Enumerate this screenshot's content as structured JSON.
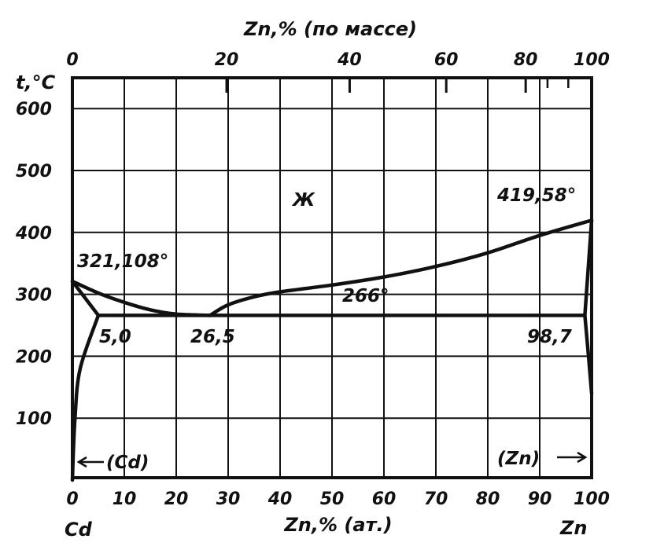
{
  "chart_data": {
    "type": "phase-diagram",
    "title_top": "Zn,% (по массе)",
    "xlabel_bottom": "Zn,% (ат.)",
    "ylabel": "t,°C",
    "x_at_range": [
      0,
      100
    ],
    "y_range": [
      0,
      650
    ],
    "bottom_ticks": [
      "0",
      "10",
      "20",
      "30",
      "40",
      "50",
      "60",
      "70",
      "80",
      "90",
      "100"
    ],
    "top_ticks": [
      {
        "label": "0",
        "at": 0
      },
      {
        "label": "20",
        "at": 29.7
      },
      {
        "label": "40",
        "at": 53.4
      },
      {
        "label": "60",
        "at": 72.0
      },
      {
        "label": "80",
        "at": 87.3
      },
      {
        "label": "100",
        "at": 100
      }
    ],
    "y_ticks": [
      {
        "label": "100",
        "value": 100
      },
      {
        "label": "200",
        "value": 200
      },
      {
        "label": "300",
        "value": 300
      },
      {
        "label": "400",
        "value": 400
      },
      {
        "label": "500",
        "value": 500
      },
      {
        "label": "600",
        "value": 600
      }
    ],
    "component_left": "Cd",
    "component_right": "Zn",
    "phase_liquid": "Ж",
    "phase_cd": "(Cd)",
    "phase_zn": "(Zn)",
    "melting_cd_label": "321,108°",
    "melting_zn_label": "419,58°",
    "eutectic_temp_label": "266°",
    "eutectic_left_label": "5,0",
    "eutectic_mid_label": "26,5",
    "eutectic_right_label": "98,7",
    "liquidus_left": [
      [
        0,
        321.1
      ],
      [
        5,
        302
      ],
      [
        10,
        287
      ],
      [
        15,
        275
      ],
      [
        20,
        268
      ],
      [
        26.5,
        266
      ]
    ],
    "liquidus_right": [
      [
        26.5,
        266
      ],
      [
        30,
        283
      ],
      [
        35,
        296
      ],
      [
        40,
        304
      ],
      [
        50,
        315
      ],
      [
        60,
        328
      ],
      [
        70,
        345
      ],
      [
        80,
        367
      ],
      [
        90,
        395
      ],
      [
        100,
        419.58
      ]
    ],
    "eutectic_line": [
      [
        5.0,
        266
      ],
      [
        98.7,
        266
      ]
    ],
    "solidus_cd": [
      [
        0,
        321.1
      ],
      [
        5.0,
        266
      ]
    ],
    "solvus_cd": [
      [
        5.0,
        266
      ],
      [
        1.5,
        180
      ],
      [
        0.5,
        100
      ],
      [
        0,
        0
      ]
    ],
    "solidus_zn": [
      [
        100,
        419.58
      ],
      [
        98.7,
        266
      ]
    ],
    "solvus_zn": [
      [
        98.7,
        266
      ],
      [
        99.5,
        190
      ],
      [
        100,
        140
      ]
    ]
  }
}
